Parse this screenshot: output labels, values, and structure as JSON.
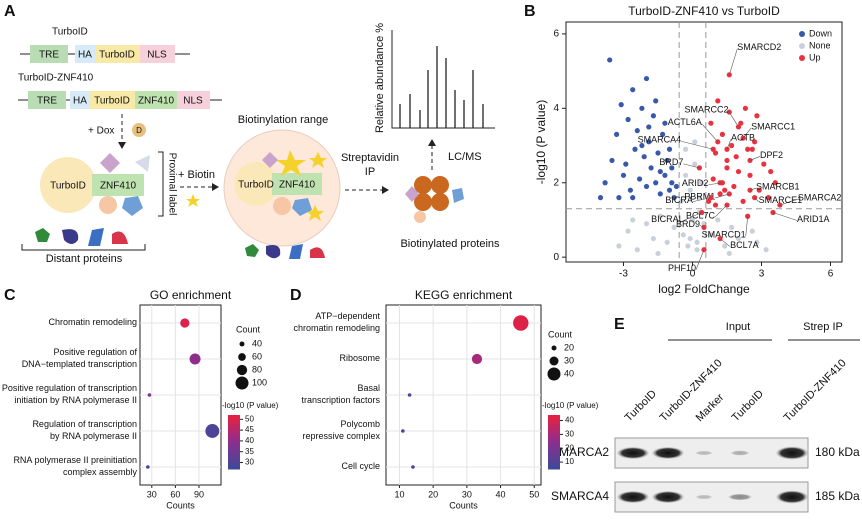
{
  "panels": [
    "A",
    "B",
    "C",
    "D",
    "E"
  ],
  "diagram": {
    "construct1": {
      "name": "TurboID",
      "parts": [
        "TRE",
        "HA",
        "TurboID",
        "NLS"
      ]
    },
    "construct2": {
      "name": "TurboID-ZNF410",
      "parts": [
        "TRE",
        "HA",
        "TurboID",
        "ZNF410",
        "NLS"
      ]
    },
    "dox": "+ Dox",
    "dox_icon": "D",
    "bait1": [
      "TurboID",
      "ZNF410"
    ],
    "proximal": "Proximal label",
    "distant": "Distant proteins",
    "biotin": "+ Biotin",
    "range": "Biotinylation range",
    "bait2": [
      "TurboID",
      "ZNF410"
    ],
    "ip": [
      "Streptavidin",
      "IP"
    ],
    "biotinylated": "Biotinylated proteins",
    "lcms": "LC/MS",
    "abundance": "Relative abundance %"
  },
  "chart_data": [
    {
      "type": "scatter",
      "title": "TurboID-ZNF410 vs TurboID",
      "x_label": "log2 FoldChange",
      "y_label": "-log10 (P value)",
      "xlim": [
        -5.5,
        6.5
      ],
      "ylim": [
        -0.13,
        6.32
      ],
      "xticks": [
        -3,
        0,
        3,
        6
      ],
      "yticks": [
        0,
        2,
        4,
        6
      ],
      "thresholds": {
        "x": [
          -0.58,
          0.58
        ],
        "y": 1.3
      },
      "legend": "top-right",
      "series": [
        {
          "name": "Down",
          "color": "#3a58aa",
          "x": [
            -3.8,
            -3.5,
            -3.3,
            -3.1,
            -3.0,
            -2.8,
            -2.7,
            -2.6,
            -2.5,
            -2.4,
            -2.3,
            -2.2,
            -2.1,
            -2.0,
            -1.9,
            -1.8,
            -1.7,
            -1.6,
            -1.5,
            -1.4,
            -1.3,
            -1.2,
            -1.1,
            -1.0,
            -0.9,
            -0.8,
            -0.7,
            -3.6,
            -2.9,
            -2.2,
            -1.6,
            -1.2,
            -0.9,
            -2.6,
            -1.9,
            -1.4,
            -3.2,
            -2.0,
            -1.0,
            -4.0
          ],
          "values": [
            2.0,
            2.6,
            3.3,
            4.1,
            2.2,
            3.7,
            1.8,
            4.5,
            2.9,
            3.4,
            2.1,
            4.0,
            2.7,
            1.9,
            3.1,
            2.4,
            3.8,
            2.0,
            2.8,
            1.7,
            3.3,
            2.2,
            2.6,
            1.8,
            2.0,
            1.6,
            1.9,
            5.3,
            2.5,
            3.0,
            4.2,
            3.6,
            2.4,
            1.6,
            3.5,
            2.3,
            1.6,
            4.8,
            2.9,
            1.6
          ]
        },
        {
          "name": "None",
          "color": "#c9d0da",
          "x": [
            -3.2,
            -2.8,
            -2.4,
            -2.0,
            -1.7,
            -1.4,
            -1.1,
            -0.8,
            -0.5,
            -0.3,
            -0.1,
            0.1,
            0.3,
            0.5,
            0.8,
            1.1,
            1.4,
            1.7,
            2.0,
            2.4,
            2.8,
            3.2,
            -0.4,
            -0.2,
            0.0,
            0.2,
            0.4,
            -0.3,
            0.1,
            0.3,
            -1.5,
            1.6,
            -2.6,
            2.6,
            -0.1,
            0.2
          ],
          "values": [
            0.3,
            0.7,
            0.2,
            0.9,
            0.5,
            1.1,
            0.4,
            0.8,
            1.5,
            2.2,
            1.8,
            2.5,
            1.2,
            0.9,
            0.6,
            1.0,
            0.3,
            0.8,
            0.5,
            1.1,
            0.4,
            0.2,
            0.6,
            0.3,
            1.0,
            0.4,
            2.0,
            2.9,
            3.1,
            1.6,
            0.1,
            0.1,
            1.0,
            0.7,
            0.5,
            0.2
          ]
        },
        {
          "name": "Up",
          "color": "#e8323f",
          "x": [
            0.7,
            0.9,
            1.0,
            1.2,
            1.3,
            1.5,
            1.6,
            1.8,
            1.9,
            2.1,
            2.2,
            2.4,
            2.5,
            2.7,
            2.9,
            3.1,
            3.3,
            3.6,
            0.8,
            1.1,
            1.4,
            1.7,
            2.0,
            2.3,
            2.6,
            1.0,
            1.5,
            2.8,
            3.4,
            1.2
          ],
          "values": [
            1.5,
            2.1,
            2.8,
            1.7,
            3.3,
            2.4,
            3.9,
            1.9,
            2.7,
            3.6,
            1.5,
            2.9,
            2.2,
            3.1,
            1.8,
            2.5,
            1.6,
            2.0,
            3.6,
            4.2,
            1.8,
            3.0,
            2.3,
            4.0,
            2.9,
            1.4,
            2.6,
            3.8,
            2.3,
            2.0
          ]
        }
      ],
      "annotations": [
        {
          "text": "SMARCD2",
          "x": 1.6,
          "y": 4.9
        },
        {
          "text": "SMARCC2",
          "x": 2.0,
          "y": 3.5
        },
        {
          "text": "ACTL6A",
          "x": 1.1,
          "y": 3.1
        },
        {
          "text": "SMARCC1",
          "x": 2.2,
          "y": 3.2
        },
        {
          "text": "ACTB",
          "x": 1.5,
          "y": 2.9
        },
        {
          "text": "SMARCA4",
          "x": 0.9,
          "y": 2.9
        },
        {
          "text": "DPF2",
          "x": 2.5,
          "y": 2.6
        },
        {
          "text": "BRD7",
          "x": 0.3,
          "y": 2.4
        },
        {
          "text": "ARID2",
          "x": 1.3,
          "y": 2.0
        },
        {
          "text": "SMARCB1",
          "x": 2.5,
          "y": 1.8
        },
        {
          "text": "SMARCA2",
          "x": 3.8,
          "y": 1.4
        },
        {
          "text": "PBRM1",
          "x": 1.6,
          "y": 1.7
        },
        {
          "text": "SMARCE1",
          "x": 2.7,
          "y": 1.6
        },
        {
          "text": "BICRA",
          "x": 0.8,
          "y": 1.6
        },
        {
          "text": "BCL7C",
          "x": 1.5,
          "y": 1.4
        },
        {
          "text": "ARID1A",
          "x": 3.5,
          "y": 1.2
        },
        {
          "text": "BICRAL",
          "x": 0.4,
          "y": 1.2
        },
        {
          "text": "SMARCD1",
          "x": 2.4,
          "y": 1.1
        },
        {
          "text": "BRD9",
          "x": 0.5,
          "y": 0.8
        },
        {
          "text": "BCL7A",
          "x": 1.2,
          "y": 0.5
        },
        {
          "text": "PHF10",
          "x": 0.5,
          "y": 0.2
        }
      ]
    },
    {
      "type": "dot",
      "title": "GO enrichment",
      "x_label": "Counts",
      "categories": [
        "Chromatin remodeling",
        "Positive regulation of\nDNA−templated transcription",
        "Positive regulation of transcription\ninitiation by RNA polymerase II",
        "Regulation of transcription\nby RNA polymerase II",
        "RNA polymerase II preinitiation\ncomplex assembly"
      ],
      "values": [
        72,
        85,
        27,
        107,
        25
      ],
      "pvalue": [
        50,
        40,
        38,
        30,
        28
      ],
      "highlight": [
        0
      ],
      "highlight_color": "#e8213f",
      "xlim": [
        15,
        118
      ],
      "xticks": [
        30,
        60,
        90
      ],
      "size_legend": {
        "title": "Count",
        "values": [
          40,
          60,
          80,
          100
        ]
      },
      "colorbar": {
        "title": "-log10 (P value)",
        "lim": [
          27,
          52
        ],
        "ticks": [
          30,
          35,
          40,
          45,
          50
        ],
        "colors": [
          "#3b4a9a",
          "#8a2f8f",
          "#e8213f"
        ]
      }
    },
    {
      "type": "dot",
      "title": "KEGG enrichment",
      "x_label": "Counts",
      "categories": [
        "ATP−dependent\nchromatin remodeling",
        "Ribosome",
        "Basal\ntranscription factors",
        "Polycomb\nrepressive complex",
        "Cell cycle"
      ],
      "values": [
        46,
        33,
        13,
        11,
        14
      ],
      "pvalue": [
        42,
        30,
        10,
        9,
        8
      ],
      "highlight": [
        0
      ],
      "highlight_color": "#e8213f",
      "xlim": [
        6,
        52
      ],
      "xticks": [
        10,
        20,
        30,
        40,
        50
      ],
      "size_legend": {
        "title": "Count",
        "values": [
          20,
          30,
          40
        ]
      },
      "colorbar": {
        "title": "-log10 (P value)",
        "lim": [
          5,
          44
        ],
        "ticks": [
          10,
          20,
          30,
          40
        ],
        "colors": [
          "#3b4a9a",
          "#8a2f8f",
          "#e8213f"
        ]
      }
    }
  ],
  "blot": {
    "groups": [
      "Input",
      "Strep IP"
    ],
    "lanes": [
      "TurboID",
      "TurboID-ZNF410",
      "Marker",
      "TurboID",
      "TurboID-ZNF410"
    ],
    "rows": [
      {
        "name": "SMARCA2",
        "size": "180 kDa"
      },
      {
        "name": "SMARCA4",
        "size": "185 kDa"
      }
    ]
  }
}
